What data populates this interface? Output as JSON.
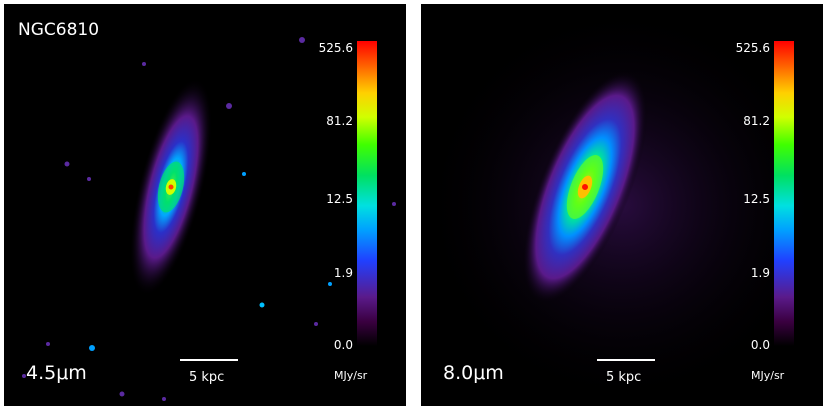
{
  "panels": [
    {
      "galaxy": "NGC6810",
      "band": "4.5μm",
      "scalebar": "5 kpc",
      "colorbar_ticks": [
        "525.6",
        "81.2",
        "12.5",
        "1.9",
        "0.0"
      ],
      "unit": "MJy/sr"
    },
    {
      "galaxy": "",
      "band": "8.0μm",
      "scalebar": "5 kpc",
      "colorbar_ticks": [
        "525.6",
        "81.2",
        "12.5",
        "1.9",
        "0.0"
      ],
      "unit": "MJy/sr"
    }
  ],
  "colorscale": [
    "#000000",
    "#5a1a8a",
    "#2040ff",
    "#00e0e0",
    "#40ff00",
    "#ffd000",
    "#ff0000"
  ]
}
